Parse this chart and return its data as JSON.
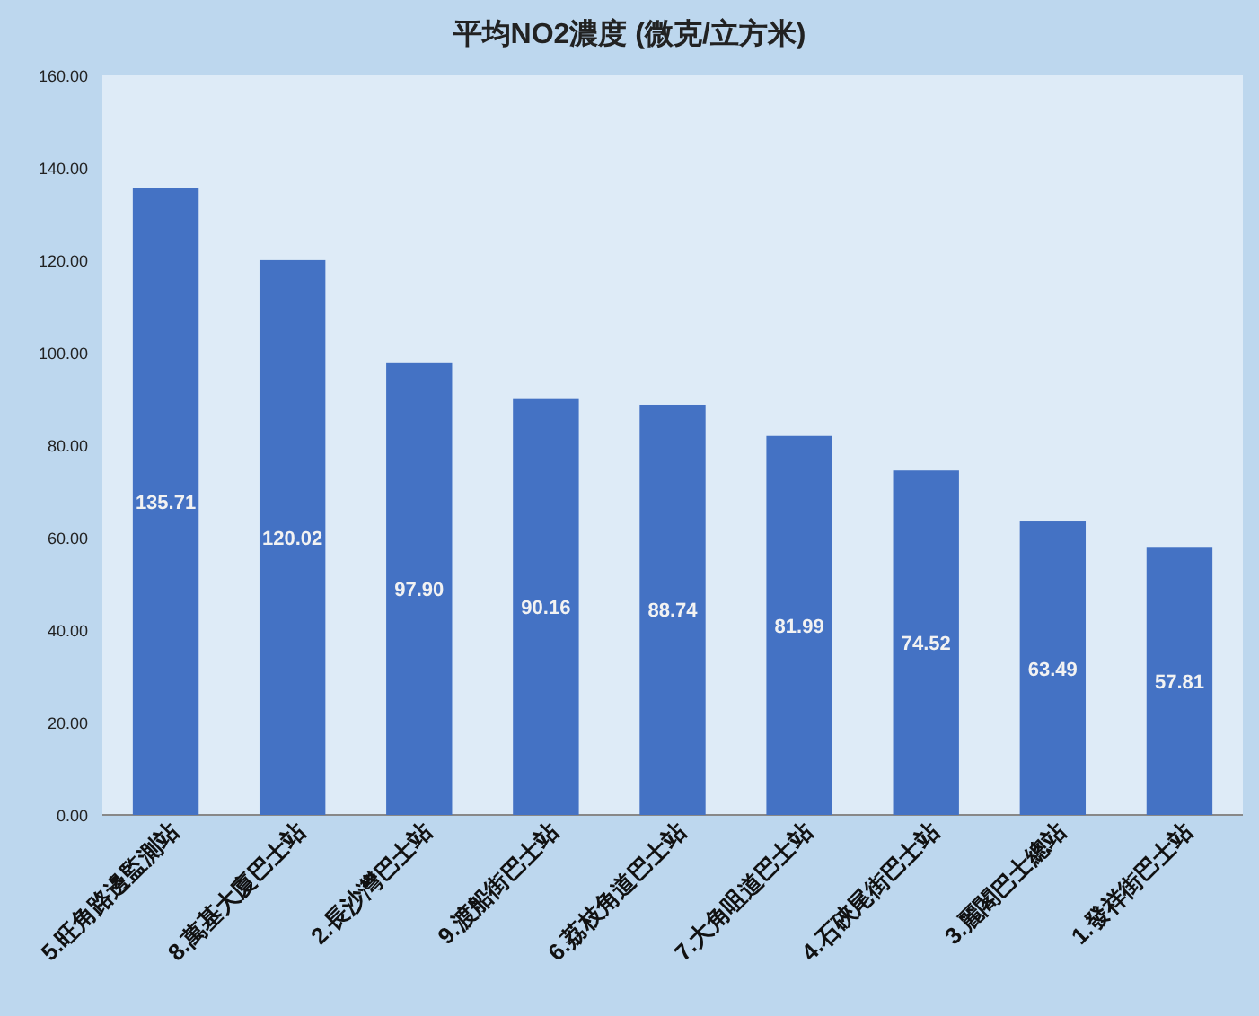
{
  "chart_data": {
    "type": "bar",
    "title": "平均NO2濃度 (微克/立方米)",
    "categories": [
      "5.旺角路邊監測站",
      "8.萬基大廈巴士站",
      "2.長沙灣巴士站",
      "9.渡船街巴士站",
      "6.荔枝角道巴士站",
      "7.大角咀道巴士站",
      "4.石硤尾街巴士站",
      "3.麗閣巴士總站",
      "1.發祥街巴士站"
    ],
    "values": [
      135.71,
      120.02,
      97.9,
      90.16,
      88.74,
      81.99,
      74.52,
      63.49,
      57.81
    ],
    "value_labels": [
      "135.71",
      "120.02",
      "97.90",
      "90.16",
      "88.74",
      "81.99",
      "74.52",
      "63.49",
      "57.81"
    ],
    "color": "#4472c4",
    "ylim": [
      0,
      160
    ],
    "yticks": [
      {
        "value": 0,
        "label": "0.00"
      },
      {
        "value": 20,
        "label": "20.00"
      },
      {
        "value": 40,
        "label": "40.00"
      },
      {
        "value": 60,
        "label": "60.00"
      },
      {
        "value": 80,
        "label": "80.00"
      },
      {
        "value": 100,
        "label": "100.00"
      },
      {
        "value": 120,
        "label": "120.00"
      },
      {
        "value": 140,
        "label": "140.00"
      },
      {
        "value": 160,
        "label": "160.00"
      }
    ],
    "grid": false
  }
}
